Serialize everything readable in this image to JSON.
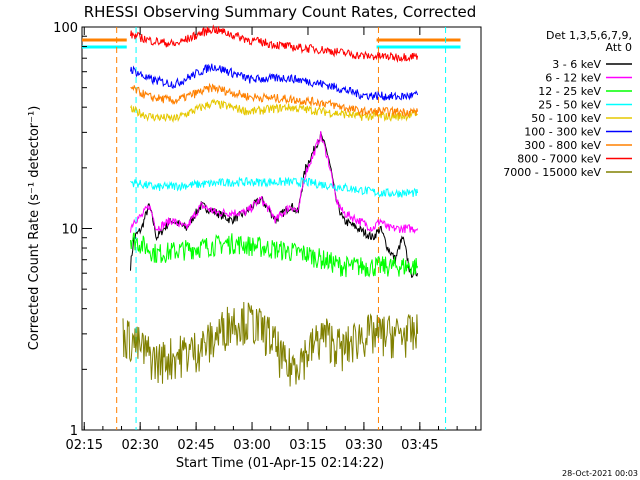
{
  "chart_data": {
    "type": "line",
    "title": "RHESSI Observing Summary Count Rates, Corrected",
    "xlabel": "Start Time (01-Apr-15 02:14:22)",
    "ylabel": "Corrected Count Rate (s⁻¹ detector⁻¹)",
    "x_ticks": [
      "02:15",
      "02:30",
      "02:45",
      "03:00",
      "03:15",
      "03:30",
      "03:45"
    ],
    "x_tick_minutes": [
      0.6,
      15.6,
      30.6,
      45.6,
      60.6,
      75.6,
      90.6
    ],
    "xlim_minutes": [
      0,
      107
    ],
    "y_scale": "log",
    "ylim": [
      1,
      100
    ],
    "y_ticks": [
      "1",
      "10",
      "100"
    ],
    "legend_header": [
      "Det 1,3,5,6,7,9,",
      "Att 0"
    ],
    "legend_placement": "right",
    "date_stamp": "28-Oct-2021 00:03",
    "series": [
      {
        "name": "3 - 6 keV",
        "color": "#000000",
        "x": [
          13,
          14,
          16,
          18,
          20,
          24,
          28,
          32,
          36,
          40,
          44,
          48,
          52,
          56,
          58,
          60,
          62,
          64,
          66,
          68,
          70,
          74,
          78,
          80,
          82,
          84,
          86,
          88,
          90
        ],
        "y": [
          6.5,
          9,
          10,
          13,
          9,
          11,
          10,
          13,
          12,
          11,
          12,
          14,
          11,
          13,
          12,
          20,
          24,
          29,
          23,
          14,
          11,
          10,
          9,
          10,
          8,
          7,
          9,
          6,
          6
        ]
      },
      {
        "name": "6 - 12 keV",
        "color": "#ff00ff",
        "x": [
          13,
          14,
          16,
          18,
          20,
          24,
          28,
          32,
          36,
          40,
          44,
          48,
          52,
          56,
          58,
          60,
          62,
          64,
          66,
          68,
          70,
          74,
          78,
          80,
          82,
          84,
          86,
          88,
          90
        ],
        "y": [
          10,
          11,
          11.5,
          13,
          10,
          11,
          10,
          13,
          12,
          12,
          12,
          14,
          11,
          13,
          12,
          19,
          23,
          29,
          22,
          14,
          12,
          11,
          10,
          11,
          10,
          10,
          10,
          10,
          10
        ]
      },
      {
        "name": "12 - 25 keV",
        "color": "#00ff00",
        "x": [
          13,
          20,
          30,
          40,
          50,
          60,
          70,
          80,
          90
        ],
        "y": [
          9,
          7.5,
          8,
          8.5,
          8,
          7.5,
          6.5,
          6.5,
          6.5
        ]
      },
      {
        "name": "25 - 50 keV",
        "color": "#00ffff",
        "x": [
          13,
          20,
          30,
          40,
          50,
          60,
          70,
          80,
          90
        ],
        "y": [
          17,
          16,
          16.5,
          17,
          17,
          17,
          16,
          15,
          15
        ]
      },
      {
        "name": "50 - 100 keV",
        "color": "#e6c800",
        "x": [
          13,
          18,
          25,
          35,
          45,
          55,
          65,
          75,
          85,
          90
        ],
        "y": [
          39,
          36,
          35,
          42,
          38,
          40,
          38,
          36,
          36,
          37
        ]
      },
      {
        "name": "100 - 300 keV",
        "color": "#0000ff",
        "x": [
          13,
          18,
          25,
          35,
          45,
          55,
          65,
          75,
          85,
          90
        ],
        "y": [
          62,
          55,
          52,
          64,
          55,
          56,
          52,
          46,
          45,
          46
        ]
      },
      {
        "name": "300 - 800 keV",
        "color": "#ff8000",
        "x": [
          13,
          18,
          25,
          35,
          45,
          55,
          65,
          75,
          85,
          90
        ],
        "y": [
          50,
          45,
          43,
          50,
          45,
          44,
          42,
          38,
          38,
          38
        ]
      },
      {
        "name": "800 - 7000 keV",
        "color": "#ff0000",
        "x": [
          13,
          18,
          25,
          35,
          45,
          55,
          65,
          75,
          85,
          90
        ],
        "y": [
          92,
          86,
          82,
          98,
          86,
          80,
          77,
          72,
          71,
          72
        ]
      },
      {
        "name": "7000 - 15000 keV",
        "color": "#808000",
        "x": [
          11,
          20,
          30,
          35,
          40,
          45,
          50,
          55,
          60,
          65,
          70,
          75,
          80,
          85,
          90
        ],
        "y": [
          3,
          2.2,
          2.5,
          2.8,
          3.5,
          3.5,
          3,
          2,
          2.4,
          3,
          2.5,
          3,
          3,
          3,
          3
        ]
      }
    ],
    "night_intervals_minutes": [
      [
        0,
        12
      ],
      [
        79,
        101.5
      ]
    ],
    "saa_markers_minutes": [
      9.3,
      14.5,
      79.5,
      97.5
    ]
  }
}
